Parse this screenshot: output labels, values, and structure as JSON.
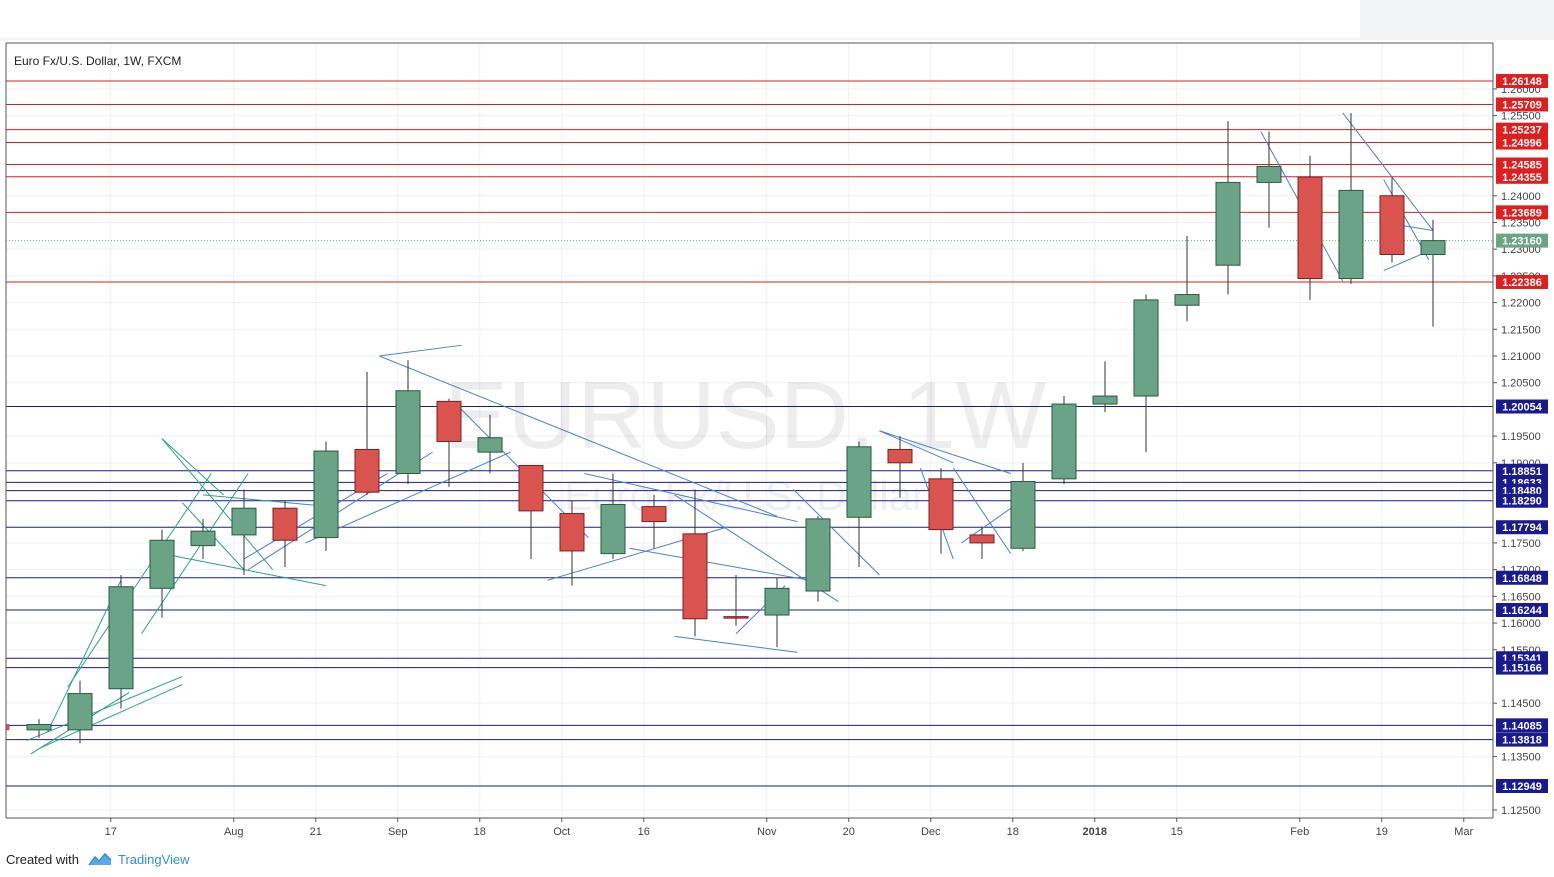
{
  "header": {
    "symbol_title": "Euro Fx/U.S. Dollar, 1W, FXCM"
  },
  "watermark": {
    "main": "EURUSD, 1W",
    "sub": "Euro Fx/U.S. Dollar"
  },
  "footer": {
    "created_with": "Created with",
    "brand": "TradingView"
  },
  "colors": {
    "up": "#6aa385",
    "down": "#d9534f",
    "support": "#1a1a8f",
    "resistance": "#dd1f1f",
    "trend_blue": "#4a7fd4",
    "trend_green": "#2aa08a",
    "grid": "#eef0f3"
  },
  "chart_data": {
    "type": "candlestick",
    "title": "Euro Fx/U.S. Dollar, 1W, FXCM",
    "x_tick_labels": [
      {
        "label": "17",
        "week": 1.75
      },
      {
        "label": "Aug",
        "week": 4.75
      },
      {
        "label": "21",
        "week": 6.75
      },
      {
        "label": "Sep",
        "week": 8.75
      },
      {
        "label": "18",
        "week": 10.75
      },
      {
        "label": "Oct",
        "week": 12.75
      },
      {
        "label": "16",
        "week": 14.75
      },
      {
        "label": "Nov",
        "week": 17.75
      },
      {
        "label": "20",
        "week": 19.75
      },
      {
        "label": "Dec",
        "week": 21.75
      },
      {
        "label": "18",
        "week": 23.75
      },
      {
        "label": "2018",
        "week": 25.75
      },
      {
        "label": "15",
        "week": 27.75
      },
      {
        "label": "Feb",
        "week": 30.75
      },
      {
        "label": "19",
        "week": 32.75
      },
      {
        "label": "Mar",
        "week": 34.75
      }
    ],
    "y_tick_labels": [
      "1.26000",
      "1.25500",
      "1.24000",
      "1.23500",
      "1.23000",
      "1.22500",
      "1.22000",
      "1.21500",
      "1.21000",
      "1.20500",
      "1.19500",
      "1.19000",
      "1.17500",
      "1.17000",
      "1.16500",
      "1.16000",
      "1.15500",
      "1.14500",
      "1.13500",
      "1.12500"
    ],
    "y_tick_values": [
      1.26,
      1.255,
      1.24,
      1.235,
      1.23,
      1.225,
      1.22,
      1.215,
      1.21,
      1.205,
      1.195,
      1.19,
      1.175,
      1.17,
      1.165,
      1.16,
      1.155,
      1.145,
      1.135,
      1.125
    ],
    "ylim": [
      1.1235,
      1.2686
    ],
    "candles": [
      {
        "o": 1.14,
        "h": 1.142,
        "l": 1.1385,
        "c": 1.141
      },
      {
        "o": 1.14,
        "h": 1.1492,
        "l": 1.1375,
        "c": 1.1468
      },
      {
        "o": 1.1477,
        "h": 1.169,
        "l": 1.144,
        "c": 1.1668
      },
      {
        "o": 1.1665,
        "h": 1.1775,
        "l": 1.161,
        "c": 1.1755
      },
      {
        "o": 1.1745,
        "h": 1.1795,
        "l": 1.172,
        "c": 1.1772
      },
      {
        "o": 1.1765,
        "h": 1.185,
        "l": 1.169,
        "c": 1.1815
      },
      {
        "o": 1.1815,
        "h": 1.183,
        "l": 1.1705,
        "c": 1.1755
      },
      {
        "o": 1.176,
        "h": 1.194,
        "l": 1.1735,
        "c": 1.1922
      },
      {
        "o": 1.1925,
        "h": 1.207,
        "l": 1.184,
        "c": 1.1845
      },
      {
        "o": 1.188,
        "h": 1.2092,
        "l": 1.186,
        "c": 1.2035
      },
      {
        "o": 1.2015,
        "h": 1.202,
        "l": 1.1855,
        "c": 1.194
      },
      {
        "o": 1.192,
        "h": 1.199,
        "l": 1.188,
        "c": 1.1947
      },
      {
        "o": 1.1895,
        "h": 1.189,
        "l": 1.172,
        "c": 1.181
      },
      {
        "o": 1.1805,
        "h": 1.183,
        "l": 1.167,
        "c": 1.1735
      },
      {
        "o": 1.173,
        "h": 1.188,
        "l": 1.172,
        "c": 1.1822
      },
      {
        "o": 1.1818,
        "h": 1.184,
        "l": 1.174,
        "c": 1.179
      },
      {
        "o": 1.1767,
        "h": 1.185,
        "l": 1.1575,
        "c": 1.1608
      },
      {
        "o": 1.1612,
        "h": 1.169,
        "l": 1.1595,
        "c": 1.161
      },
      {
        "o": 1.1615,
        "h": 1.1685,
        "l": 1.1555,
        "c": 1.1665
      },
      {
        "o": 1.166,
        "h": 1.18,
        "l": 1.164,
        "c": 1.1795
      },
      {
        "o": 1.1798,
        "h": 1.194,
        "l": 1.1705,
        "c": 1.193
      },
      {
        "o": 1.1925,
        "h": 1.195,
        "l": 1.1835,
        "c": 1.19
      },
      {
        "o": 1.187,
        "h": 1.189,
        "l": 1.173,
        "c": 1.1775
      },
      {
        "o": 1.1765,
        "h": 1.178,
        "l": 1.172,
        "c": 1.175
      },
      {
        "o": 1.174,
        "h": 1.19,
        "l": 1.1735,
        "c": 1.1865
      },
      {
        "o": 1.187,
        "h": 1.2025,
        "l": 1.186,
        "c": 1.201
      },
      {
        "o": 1.201,
        "h": 1.209,
        "l": 1.1995,
        "c": 1.2025
      },
      {
        "o": 1.2025,
        "h": 1.2215,
        "l": 1.192,
        "c": 1.2205
      },
      {
        "o": 1.2195,
        "h": 1.2325,
        "l": 1.2165,
        "c": 1.2215
      },
      {
        "o": 1.227,
        "h": 1.254,
        "l": 1.2215,
        "c": 1.2425
      },
      {
        "o": 1.2425,
        "h": 1.252,
        "l": 1.234,
        "c": 1.2455
      },
      {
        "o": 1.2435,
        "h": 1.2475,
        "l": 1.2205,
        "c": 1.2245
      },
      {
        "o": 1.2245,
        "h": 1.2555,
        "l": 1.2235,
        "c": 1.241
      },
      {
        "o": 1.24,
        "h": 1.2435,
        "l": 1.2275,
        "c": 1.229
      },
      {
        "o": 1.229,
        "h": 1.2355,
        "l": 1.2155,
        "c": 1.2316
      }
    ],
    "horizontal_levels": [
      {
        "value": 1.26148,
        "label": "1.26148",
        "kind": "resistance"
      },
      {
        "value": 1.25709,
        "label": "1.25709",
        "kind": "resistance"
      },
      {
        "value": 1.25237,
        "label": "1.25237",
        "kind": "resistance"
      },
      {
        "value": 1.24996,
        "label": "1.24996",
        "kind": "resistance"
      },
      {
        "value": 1.24585,
        "label": "1.24585",
        "kind": "resistance"
      },
      {
        "value": 1.24355,
        "label": "1.24355",
        "kind": "resistance"
      },
      {
        "value": 1.23689,
        "label": "1.23689",
        "kind": "resistance"
      },
      {
        "value": 1.22386,
        "label": "1.22386",
        "kind": "resistance"
      },
      {
        "value": 1.20054,
        "label": "1.20054",
        "kind": "support"
      },
      {
        "value": 1.18851,
        "label": "1.18851",
        "kind": "support"
      },
      {
        "value": 1.18633,
        "label": "1.18633",
        "kind": "support"
      },
      {
        "value": 1.1848,
        "label": "1.18480",
        "kind": "support"
      },
      {
        "value": 1.1829,
        "label": "1.18290",
        "kind": "support"
      },
      {
        "value": 1.17794,
        "label": "1.17794",
        "kind": "support"
      },
      {
        "value": 1.16848,
        "label": "1.16848",
        "kind": "support"
      },
      {
        "value": 1.16244,
        "label": "1.16244",
        "kind": "support"
      },
      {
        "value": 1.15341,
        "label": "1.15341",
        "kind": "support"
      },
      {
        "value": 1.15166,
        "label": "1.15166",
        "kind": "support"
      },
      {
        "value": 1.14085,
        "label": "1.14085",
        "kind": "support"
      },
      {
        "value": 1.13818,
        "label": "1.13818",
        "kind": "support"
      },
      {
        "value": 1.12949,
        "label": "1.12949",
        "kind": "support"
      }
    ],
    "last_price": {
      "value": 1.2316,
      "label": "1.23160"
    },
    "trendlines": [
      {
        "from": [
          -0.2,
          1.1355
        ],
        "to": [
          2.2,
          1.147
        ],
        "c": "green"
      },
      {
        "from": [
          0.0,
          1.1365
        ],
        "to": [
          3.5,
          1.1485
        ],
        "c": "green"
      },
      {
        "from": [
          -0.3,
          1.138
        ],
        "to": [
          3.5,
          1.15
        ],
        "c": "green"
      },
      {
        "from": [
          0.2,
          1.1395
        ],
        "to": [
          2.0,
          1.168
        ],
        "c": "green"
      },
      {
        "from": [
          2.5,
          1.158
        ],
        "to": [
          5.1,
          1.188
        ],
        "c": "green"
      },
      {
        "from": [
          0.7,
          1.148
        ],
        "to": [
          4.2,
          1.188
        ],
        "c": "green"
      },
      {
        "from": [
          3.0,
          1.1945
        ],
        "to": [
          5.7,
          1.17
        ],
        "c": "green"
      },
      {
        "from": [
          3.0,
          1.1945
        ],
        "to": [
          4.5,
          1.184
        ],
        "c": "green"
      },
      {
        "from": [
          4.0,
          1.184
        ],
        "to": [
          6.8,
          1.182
        ],
        "c": "green"
      },
      {
        "from": [
          3.0,
          1.173
        ],
        "to": [
          7.0,
          1.167
        ],
        "c": "green"
      },
      {
        "from": [
          3.5,
          1.1825
        ],
        "to": [
          5.0,
          1.17
        ],
        "c": "green"
      },
      {
        "from": [
          5.0,
          1.172
        ],
        "to": [
          8.5,
          1.188
        ],
        "c": "blue"
      },
      {
        "from": [
          5.1,
          1.17
        ],
        "to": [
          9.6,
          1.192
        ],
        "c": "blue"
      },
      {
        "from": [
          6.5,
          1.175
        ],
        "to": [
          11.5,
          1.192
        ],
        "c": "blue"
      },
      {
        "from": [
          8.3,
          1.21
        ],
        "to": [
          10.3,
          1.212
        ],
        "c": "blue"
      },
      {
        "from": [
          8.3,
          1.21
        ],
        "to": [
          18.0,
          1.18
        ],
        "c": "blue"
      },
      {
        "from": [
          10.3,
          1.2
        ],
        "to": [
          13.4,
          1.176
        ],
        "c": "blue"
      },
      {
        "from": [
          12.4,
          1.168
        ],
        "to": [
          16.8,
          1.178
        ],
        "c": "blue"
      },
      {
        "from": [
          13.3,
          1.188
        ],
        "to": [
          18.5,
          1.179
        ],
        "c": "blue"
      },
      {
        "from": [
          14.4,
          1.174
        ],
        "to": [
          18.8,
          1.168
        ],
        "c": "blue"
      },
      {
        "from": [
          15.5,
          1.184
        ],
        "to": [
          19.5,
          1.164
        ],
        "c": "blue"
      },
      {
        "from": [
          15.5,
          1.1575
        ],
        "to": [
          18.5,
          1.1545
        ],
        "c": "blue"
      },
      {
        "from": [
          17.0,
          1.158
        ],
        "to": [
          18.2,
          1.167
        ],
        "c": "blue"
      },
      {
        "from": [
          18.4,
          1.185
        ],
        "to": [
          20.5,
          1.169
        ],
        "c": "blue"
      },
      {
        "from": [
          20.5,
          1.196
        ],
        "to": [
          22.3,
          1.19
        ],
        "c": "blue"
      },
      {
        "from": [
          20.5,
          1.196
        ],
        "to": [
          23.7,
          1.188
        ],
        "c": "blue"
      },
      {
        "from": [
          21.5,
          1.189
        ],
        "to": [
          22.3,
          1.172
        ],
        "c": "blue"
      },
      {
        "from": [
          22.3,
          1.189
        ],
        "to": [
          23.7,
          1.173
        ],
        "c": "blue"
      },
      {
        "from": [
          22.5,
          1.175
        ],
        "to": [
          23.8,
          1.182
        ],
        "c": "blue"
      },
      {
        "from": [
          29.8,
          1.252
        ],
        "to": [
          31.8,
          1.224
        ],
        "c": "blue"
      },
      {
        "from": [
          31.8,
          1.2555
        ],
        "to": [
          34.0,
          1.2335
        ],
        "c": "blue"
      },
      {
        "from": [
          32.8,
          1.243
        ],
        "to": [
          33.9,
          1.228
        ],
        "c": "blue"
      },
      {
        "from": [
          32.8,
          1.226
        ],
        "to": [
          34.0,
          1.23
        ],
        "c": "blue"
      },
      {
        "from": [
          32.8,
          1.235
        ],
        "to": [
          34.0,
          1.2335
        ],
        "c": "blue"
      }
    ]
  }
}
